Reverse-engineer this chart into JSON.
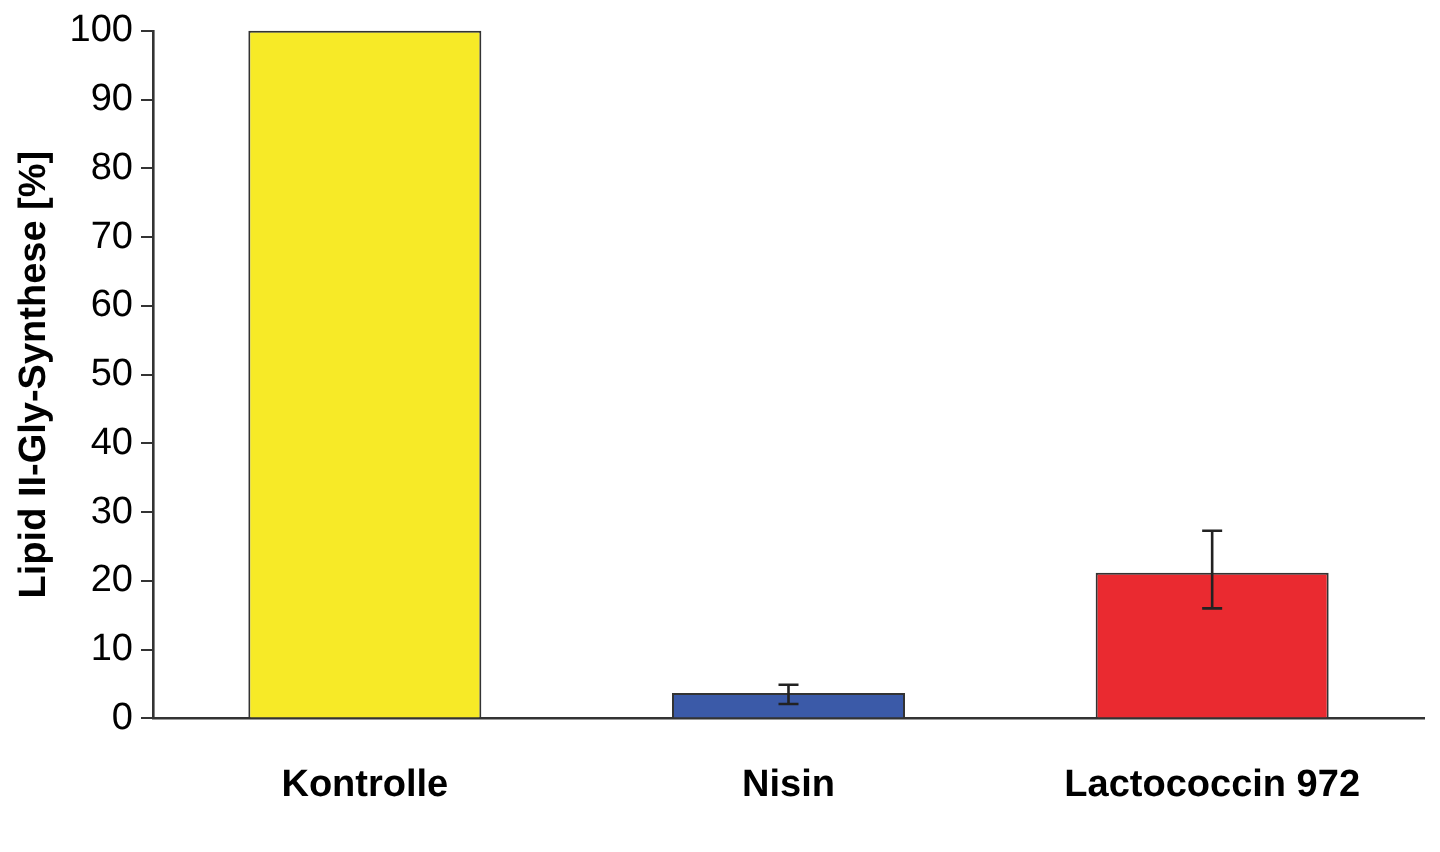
{
  "chart_data": {
    "type": "bar",
    "ylabel": "Lipid II-Gly-Synthese [%]",
    "categories": [
      "Kontrolle",
      "Nisin",
      "Lactococcin 972"
    ],
    "values": [
      100,
      3.7,
      21.2
    ],
    "colors": [
      "#f7ea27",
      "#3b5aa8",
      "#ea2a30"
    ],
    "errors": [
      null,
      [
        2.1,
        4.9
      ],
      [
        16.0,
        27.3
      ]
    ],
    "ylim": [
      0,
      100
    ],
    "yticks": [
      0,
      10,
      20,
      30,
      40,
      50,
      60,
      70,
      80,
      90,
      100
    ],
    "grid": false,
    "legend": false
  }
}
